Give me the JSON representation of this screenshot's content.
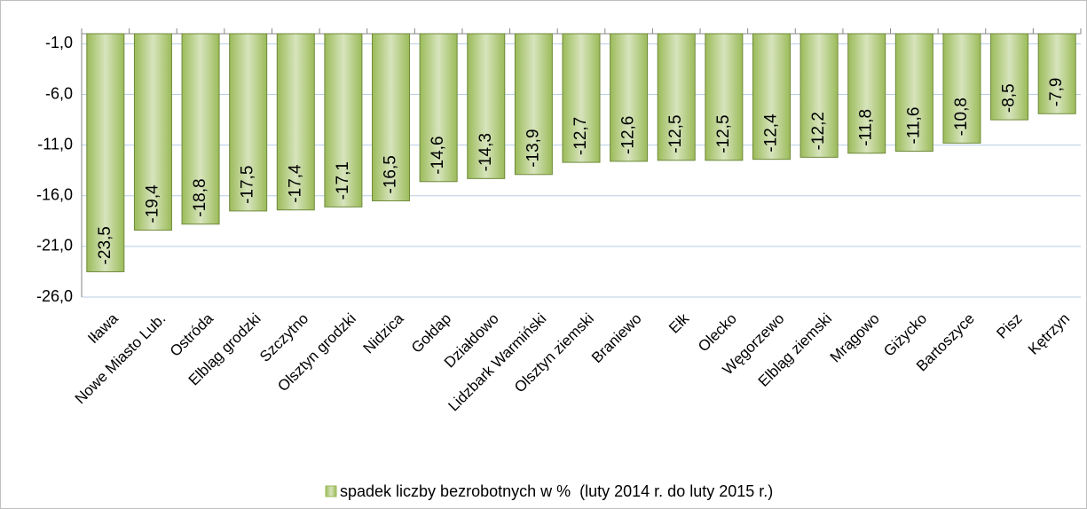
{
  "chart_data": {
    "type": "bar",
    "categories": [
      "Iława",
      "Nowe Miasto Lub.",
      "Ostróda",
      "Elbląg grodzki",
      "Szczytno",
      "Olsztyn grodzki",
      "Nidzica",
      "Gołdap",
      "Działdowo",
      "Lidzbark Warmiński",
      "Olsztyn ziemski",
      "Braniewo",
      "Ełk",
      "Olecko",
      "Węgorzewo",
      "Elbląg ziemski",
      "Mrągowo",
      "Giżycko",
      "Bartoszyce",
      "Pisz",
      "Kętrzyn"
    ],
    "series": [
      {
        "name": "spadek liczby bezrobotnych w %  (luty 2014 r. do luty 2015 r.)",
        "color": "#9bbb59",
        "values": [
          -23.5,
          -19.4,
          -18.8,
          -17.5,
          -17.4,
          -17.1,
          -16.5,
          -14.6,
          -14.3,
          -13.9,
          -12.7,
          -12.6,
          -12.5,
          -12.5,
          -12.4,
          -12.2,
          -11.8,
          -11.6,
          -10.8,
          -8.5,
          -7.9
        ],
        "value_labels": [
          "-23,5",
          "-19,4",
          "-18,8",
          "-17,5",
          "-17,4",
          "-17,1",
          "-16,5",
          "-14,6",
          "-14,3",
          "-13,9",
          "-12,7",
          "-12,6",
          "-12,5",
          "-12,5",
          "-12,4",
          "-12,2",
          "-11,8",
          "-11,6",
          "-10,8",
          "-8,5",
          "-7,9"
        ]
      }
    ],
    "ylim": [
      -26,
      0
    ],
    "yticks": [
      {
        "value": -1,
        "label": "-1,0"
      },
      {
        "value": -6,
        "label": "-6,0"
      },
      {
        "value": -11,
        "label": "-11,0"
      },
      {
        "value": -16,
        "label": "-16,0"
      },
      {
        "value": -21,
        "label": "-21,0"
      },
      {
        "value": -26,
        "label": "-26,0"
      }
    ],
    "grid": true,
    "legend": "bottom"
  }
}
